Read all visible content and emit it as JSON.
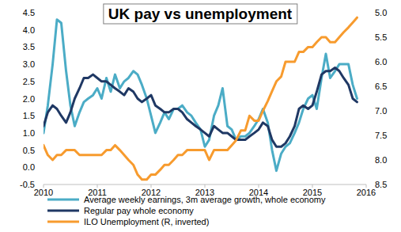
{
  "chart_data": {
    "type": "line",
    "title": "UK pay vs unemployment",
    "x": [
      2010,
      2010.08,
      2010.17,
      2010.25,
      2010.33,
      2010.42,
      2010.5,
      2010.58,
      2010.67,
      2010.75,
      2010.83,
      2010.92,
      2011,
      2011.08,
      2011.17,
      2011.25,
      2011.33,
      2011.42,
      2011.5,
      2011.58,
      2011.67,
      2011.75,
      2011.83,
      2011.92,
      2012,
      2012.08,
      2012.17,
      2012.25,
      2012.33,
      2012.42,
      2012.5,
      2012.58,
      2012.67,
      2012.75,
      2012.83,
      2012.92,
      2013,
      2013.08,
      2013.17,
      2013.25,
      2013.33,
      2013.42,
      2013.5,
      2013.58,
      2013.67,
      2013.75,
      2013.83,
      2013.92,
      2014,
      2014.08,
      2014.17,
      2014.25,
      2014.33,
      2014.42,
      2014.5,
      2014.58,
      2014.67,
      2014.75,
      2014.83,
      2014.92,
      2015,
      2015.08,
      2015.17,
      2015.25,
      2015.33,
      2015.42,
      2015.5,
      2015.58,
      2015.67,
      2015.75,
      2015.83
    ],
    "xlim": [
      2010,
      2016
    ],
    "xticks": [
      2010,
      2011,
      2012,
      2013,
      2014,
      2015,
      2016
    ],
    "ylim": [
      -0.5,
      4.5
    ],
    "yticks": [
      -0.5,
      {
        "value": 0,
        "label": "0.0"
      },
      0.5,
      {
        "value": 1,
        "label": "1.0"
      },
      1.5,
      {
        "value": 2,
        "label": "2.0"
      },
      2.5,
      {
        "value": 3,
        "label": "3.0"
      },
      3.5,
      {
        "value": 4,
        "label": "4.0"
      },
      4.5
    ],
    "y2lim": [
      8.5,
      5
    ],
    "y2ticks": [
      {
        "value": 5,
        "label": "5.0"
      },
      5.5,
      {
        "value": 6,
        "label": "6.0"
      },
      6.5,
      {
        "value": 7,
        "label": "7.0"
      },
      7.5,
      {
        "value": 8,
        "label": "8.0"
      },
      8.5
    ],
    "grid": false,
    "legend": "bottom",
    "series": [
      {
        "name": "Average weekly earnings, 3m average growth, whole economy",
        "color": "#4bacc6",
        "values": [
          1.0,
          1.8,
          3.0,
          4.3,
          4.2,
          2.8,
          1.8,
          1.2,
          1.6,
          1.9,
          2.0,
          2.1,
          2.3,
          2.0,
          2.6,
          2.2,
          2.7,
          2.3,
          2.5,
          2.6,
          2.8,
          2.7,
          2.4,
          2.0,
          1.5,
          1.0,
          1.3,
          1.6,
          1.4,
          1.7,
          1.7,
          1.8,
          1.6,
          1.5,
          1.3,
          1.1,
          0.6,
          0.8,
          1.5,
          1.8,
          2.3,
          1.2,
          1.1,
          0.8,
          0.9,
          0.9,
          1.0,
          1.2,
          1.4,
          1.7,
          1.3,
          0.5,
          -0.1,
          0.4,
          0.6,
          0.7,
          1.0,
          1.3,
          1.7,
          2.0,
          2.1,
          1.7,
          2.6,
          3.3,
          2.6,
          2.8,
          3.0,
          3.0,
          3.0,
          2.4,
          2.0
        ]
      },
      {
        "name": "Regular pay whole economy",
        "color": "#1f3864",
        "values": [
          1.2,
          1.6,
          1.8,
          1.7,
          1.5,
          1.3,
          1.6,
          2.0,
          2.3,
          2.6,
          2.6,
          2.7,
          2.6,
          2.5,
          2.5,
          2.4,
          2.3,
          2.2,
          2.1,
          2.3,
          2.2,
          2.0,
          1.9,
          2.0,
          2.1,
          1.8,
          1.7,
          1.6,
          1.6,
          1.7,
          1.7,
          1.6,
          1.4,
          1.3,
          1.2,
          1.1,
          1.0,
          0.9,
          1.2,
          1.1,
          1.0,
          1.0,
          0.9,
          0.8,
          0.8,
          0.8,
          0.9,
          1.0,
          1.1,
          1.3,
          1.2,
          0.8,
          0.6,
          0.6,
          0.7,
          0.9,
          1.2,
          1.7,
          1.8,
          1.7,
          1.8,
          2.2,
          2.7,
          2.8,
          2.8,
          2.9,
          2.8,
          2.6,
          2.4,
          2.0,
          1.9
        ]
      },
      {
        "name": "ILO Unemployment (R, inverted)",
        "color": "#f79b2e",
        "axis": "y2",
        "values": [
          7.7,
          7.9,
          8.0,
          7.9,
          7.9,
          7.8,
          7.8,
          7.8,
          7.9,
          7.9,
          7.9,
          7.9,
          7.9,
          7.9,
          7.8,
          7.8,
          7.7,
          7.8,
          7.9,
          8.0,
          8.1,
          8.3,
          8.4,
          8.4,
          8.3,
          8.3,
          8.2,
          8.1,
          8.1,
          8.0,
          7.9,
          7.9,
          7.8,
          7.8,
          7.8,
          7.8,
          7.8,
          8.0,
          7.8,
          7.8,
          7.8,
          7.8,
          7.7,
          7.6,
          7.4,
          7.4,
          7.1,
          7.2,
          7.2,
          7.0,
          6.8,
          6.6,
          6.4,
          6.3,
          6.0,
          6.0,
          6.0,
          5.8,
          5.8,
          5.7,
          5.7,
          5.6,
          5.5,
          5.5,
          5.6,
          5.6,
          5.5,
          5.4,
          5.3,
          5.2,
          5.1
        ]
      }
    ]
  }
}
